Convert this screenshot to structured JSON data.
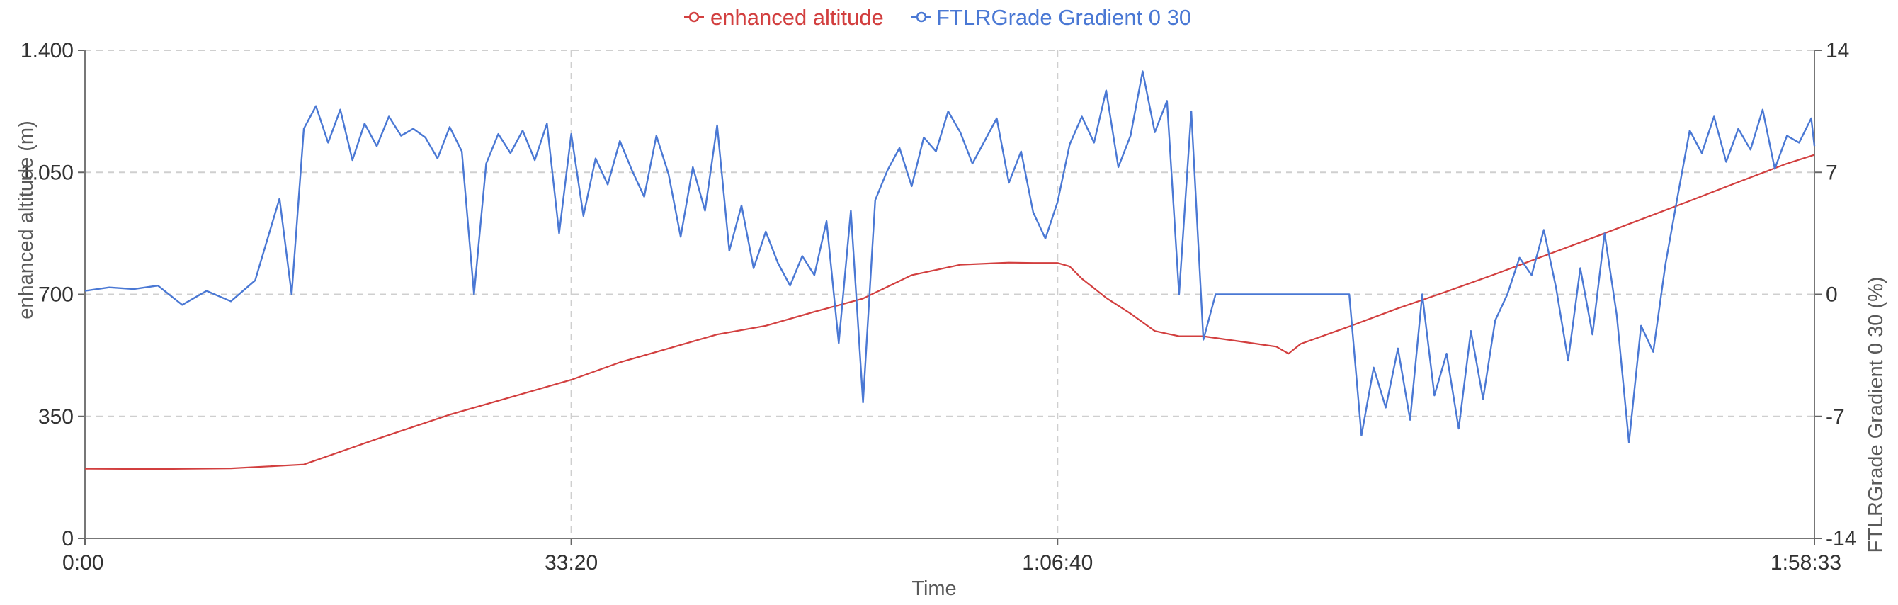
{
  "chart_data": {
    "type": "line",
    "xlabel": "Time",
    "x_ticks": [
      {
        "seconds": 0,
        "label": "0:00"
      },
      {
        "seconds": 2000,
        "label": "33:20"
      },
      {
        "seconds": 4000,
        "label": "1:06:40"
      },
      {
        "seconds": 7113,
        "label": "1:58:33"
      }
    ],
    "xlim": [
      0,
      7113
    ],
    "grid": true,
    "legend_position": "top-center",
    "y_left": {
      "label": "enhanced altitude (m)",
      "lim": [
        0,
        1400
      ],
      "ticks": [
        {
          "value": 0,
          "label": "0"
        },
        {
          "value": 350,
          "label": "350"
        },
        {
          "value": 700,
          "label": "700"
        },
        {
          "value": 1050,
          "label": "1.050"
        },
        {
          "value": 1400,
          "label": "1.400"
        }
      ]
    },
    "y_right": {
      "label": "FTLRGrade Gradient 0 30 (%)",
      "lim": [
        -14,
        14
      ],
      "ticks": [
        {
          "value": -14,
          "label": "-14"
        },
        {
          "value": -7,
          "label": "-7"
        },
        {
          "value": 0,
          "label": "0"
        },
        {
          "value": 7,
          "label": "7"
        },
        {
          "value": 14,
          "label": "14"
        }
      ]
    },
    "series": [
      {
        "name": "enhanced altitude",
        "axis": "left",
        "color": "#d23f3f",
        "points": [
          [
            0,
            200
          ],
          [
            300,
            199
          ],
          [
            600,
            201
          ],
          [
            900,
            212
          ],
          [
            1200,
            285
          ],
          [
            1500,
            355
          ],
          [
            1800,
            415
          ],
          [
            2000,
            455
          ],
          [
            2200,
            505
          ],
          [
            2400,
            545
          ],
          [
            2600,
            585
          ],
          [
            2800,
            610
          ],
          [
            3000,
            650
          ],
          [
            3200,
            688
          ],
          [
            3400,
            755
          ],
          [
            3600,
            785
          ],
          [
            3800,
            791
          ],
          [
            3900,
            790
          ],
          [
            4000,
            790
          ],
          [
            4050,
            780
          ],
          [
            4100,
            745
          ],
          [
            4200,
            690
          ],
          [
            4300,
            645
          ],
          [
            4400,
            595
          ],
          [
            4500,
            580
          ],
          [
            4600,
            580
          ],
          [
            4700,
            570
          ],
          [
            4800,
            560
          ],
          [
            4900,
            550
          ],
          [
            4950,
            530
          ],
          [
            5000,
            558
          ],
          [
            5200,
            608
          ],
          [
            5400,
            660
          ],
          [
            5600,
            708
          ],
          [
            5800,
            758
          ],
          [
            6000,
            810
          ],
          [
            6200,
            862
          ],
          [
            6400,
            915
          ],
          [
            6600,
            968
          ],
          [
            6800,
            1022
          ],
          [
            7000,
            1075
          ],
          [
            7113,
            1100
          ]
        ]
      },
      {
        "name": "FTLRGrade Gradient 0 30",
        "axis": "right",
        "color": "#4a78d4",
        "points": [
          [
            0,
            0.2
          ],
          [
            100,
            0.4
          ],
          [
            200,
            0.3
          ],
          [
            300,
            0.5
          ],
          [
            400,
            -0.6
          ],
          [
            500,
            0.2
          ],
          [
            600,
            -0.4
          ],
          [
            700,
            0.8
          ],
          [
            800,
            5.5
          ],
          [
            850,
            0
          ],
          [
            900,
            9.5
          ],
          [
            950,
            10.8
          ],
          [
            1000,
            8.7
          ],
          [
            1050,
            10.6
          ],
          [
            1100,
            7.7
          ],
          [
            1150,
            9.8
          ],
          [
            1200,
            8.5
          ],
          [
            1250,
            10.2
          ],
          [
            1300,
            9.1
          ],
          [
            1350,
            9.5
          ],
          [
            1400,
            9.0
          ],
          [
            1450,
            7.8
          ],
          [
            1500,
            9.6
          ],
          [
            1550,
            8.2
          ],
          [
            1600,
            0
          ],
          [
            1650,
            7.5
          ],
          [
            1700,
            9.2
          ],
          [
            1750,
            8.1
          ],
          [
            1800,
            9.4
          ],
          [
            1850,
            7.7
          ],
          [
            1900,
            9.8
          ],
          [
            1950,
            3.5
          ],
          [
            2000,
            9.2
          ],
          [
            2050,
            4.5
          ],
          [
            2100,
            7.8
          ],
          [
            2150,
            6.3
          ],
          [
            2200,
            8.8
          ],
          [
            2250,
            7.1
          ],
          [
            2300,
            5.6
          ],
          [
            2350,
            9.1
          ],
          [
            2400,
            6.9
          ],
          [
            2450,
            3.3
          ],
          [
            2500,
            7.3
          ],
          [
            2550,
            4.8
          ],
          [
            2600,
            9.7
          ],
          [
            2650,
            2.5
          ],
          [
            2700,
            5.1
          ],
          [
            2750,
            1.5
          ],
          [
            2800,
            3.6
          ],
          [
            2850,
            1.8
          ],
          [
            2900,
            0.5
          ],
          [
            2950,
            2.2
          ],
          [
            3000,
            1.1
          ],
          [
            3050,
            4.2
          ],
          [
            3100,
            -2.8
          ],
          [
            3150,
            4.8
          ],
          [
            3200,
            -6.2
          ],
          [
            3250,
            5.4
          ],
          [
            3300,
            7.1
          ],
          [
            3350,
            8.4
          ],
          [
            3400,
            6.2
          ],
          [
            3450,
            9.0
          ],
          [
            3500,
            8.2
          ],
          [
            3550,
            10.5
          ],
          [
            3600,
            9.3
          ],
          [
            3650,
            7.5
          ],
          [
            3700,
            8.8
          ],
          [
            3750,
            10.1
          ],
          [
            3800,
            6.4
          ],
          [
            3850,
            8.2
          ],
          [
            3900,
            4.7
          ],
          [
            3950,
            3.2
          ],
          [
            4000,
            5.3
          ],
          [
            4050,
            8.6
          ],
          [
            4100,
            10.2
          ],
          [
            4150,
            8.7
          ],
          [
            4200,
            11.7
          ],
          [
            4250,
            7.3
          ],
          [
            4300,
            9.1
          ],
          [
            4350,
            12.8
          ],
          [
            4400,
            9.3
          ],
          [
            4450,
            11.1
          ],
          [
            4500,
            0
          ],
          [
            4550,
            10.5
          ],
          [
            4600,
            -2.6
          ],
          [
            4650,
            0
          ],
          [
            4700,
            0
          ],
          [
            4800,
            0
          ],
          [
            4900,
            0
          ],
          [
            5000,
            0
          ],
          [
            5100,
            0
          ],
          [
            5200,
            0
          ],
          [
            5250,
            -8.1
          ],
          [
            5300,
            -4.2
          ],
          [
            5350,
            -6.5
          ],
          [
            5400,
            -3.1
          ],
          [
            5450,
            -7.2
          ],
          [
            5500,
            0
          ],
          [
            5550,
            -5.8
          ],
          [
            5600,
            -3.4
          ],
          [
            5650,
            -7.7
          ],
          [
            5700,
            -2.1
          ],
          [
            5750,
            -6.0
          ],
          [
            5800,
            -1.5
          ],
          [
            5850,
            0
          ],
          [
            5900,
            2.1
          ],
          [
            5950,
            1.1
          ],
          [
            6000,
            3.7
          ],
          [
            6050,
            0.4
          ],
          [
            6100,
            -3.8
          ],
          [
            6150,
            1.5
          ],
          [
            6200,
            -2.3
          ],
          [
            6250,
            3.5
          ],
          [
            6300,
            -1.2
          ],
          [
            6350,
            -8.5
          ],
          [
            6400,
            -1.8
          ],
          [
            6450,
            -3.3
          ],
          [
            6500,
            1.7
          ],
          [
            6550,
            5.6
          ],
          [
            6600,
            9.4
          ],
          [
            6650,
            8.1
          ],
          [
            6700,
            10.2
          ],
          [
            6750,
            7.6
          ],
          [
            6800,
            9.5
          ],
          [
            6850,
            8.3
          ],
          [
            6900,
            10.6
          ],
          [
            6950,
            7.2
          ],
          [
            7000,
            9.1
          ],
          [
            7050,
            8.7
          ],
          [
            7100,
            10.1
          ],
          [
            7113,
            8.5
          ]
        ]
      }
    ]
  }
}
